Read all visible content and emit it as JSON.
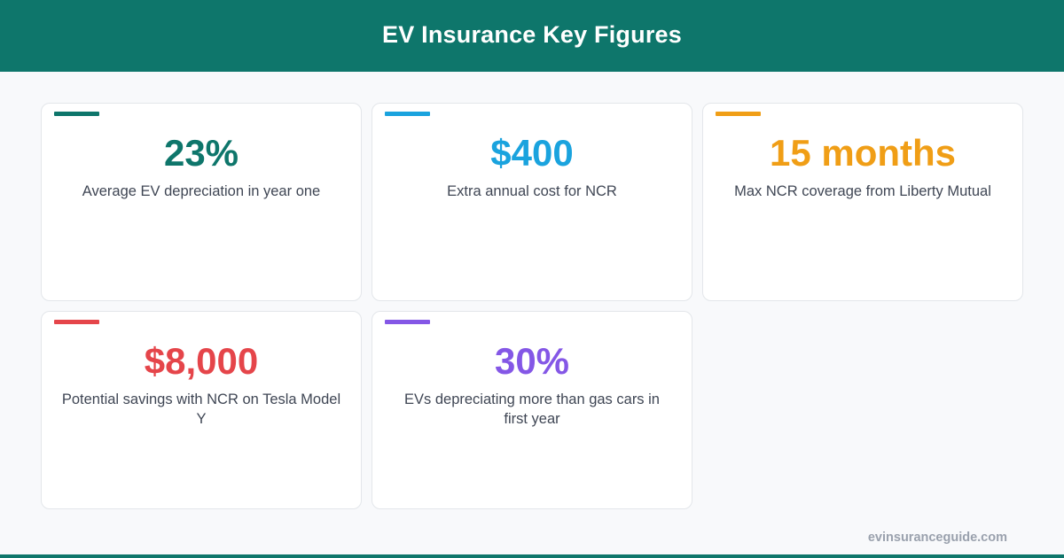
{
  "header": {
    "title": "EV Insurance Key Figures",
    "background": "#0e766b"
  },
  "cards": [
    {
      "value": "23%",
      "label": "Average EV depreciation in year one",
      "color": "#0e766b"
    },
    {
      "value": "$400",
      "label": "Extra annual cost for NCR",
      "color": "#1aa3de"
    },
    {
      "value": "15 months",
      "label": "Max NCR coverage from Liberty Mutual",
      "color": "#f09e16"
    },
    {
      "value": "$8,000",
      "label": "Potential savings with NCR on Tesla Model Y",
      "color": "#e5454a"
    },
    {
      "value": "30%",
      "label": "EVs depreciating more than gas cars in first year",
      "color": "#8457e6"
    }
  ],
  "footer": {
    "site": "evinsuranceguide.com"
  }
}
